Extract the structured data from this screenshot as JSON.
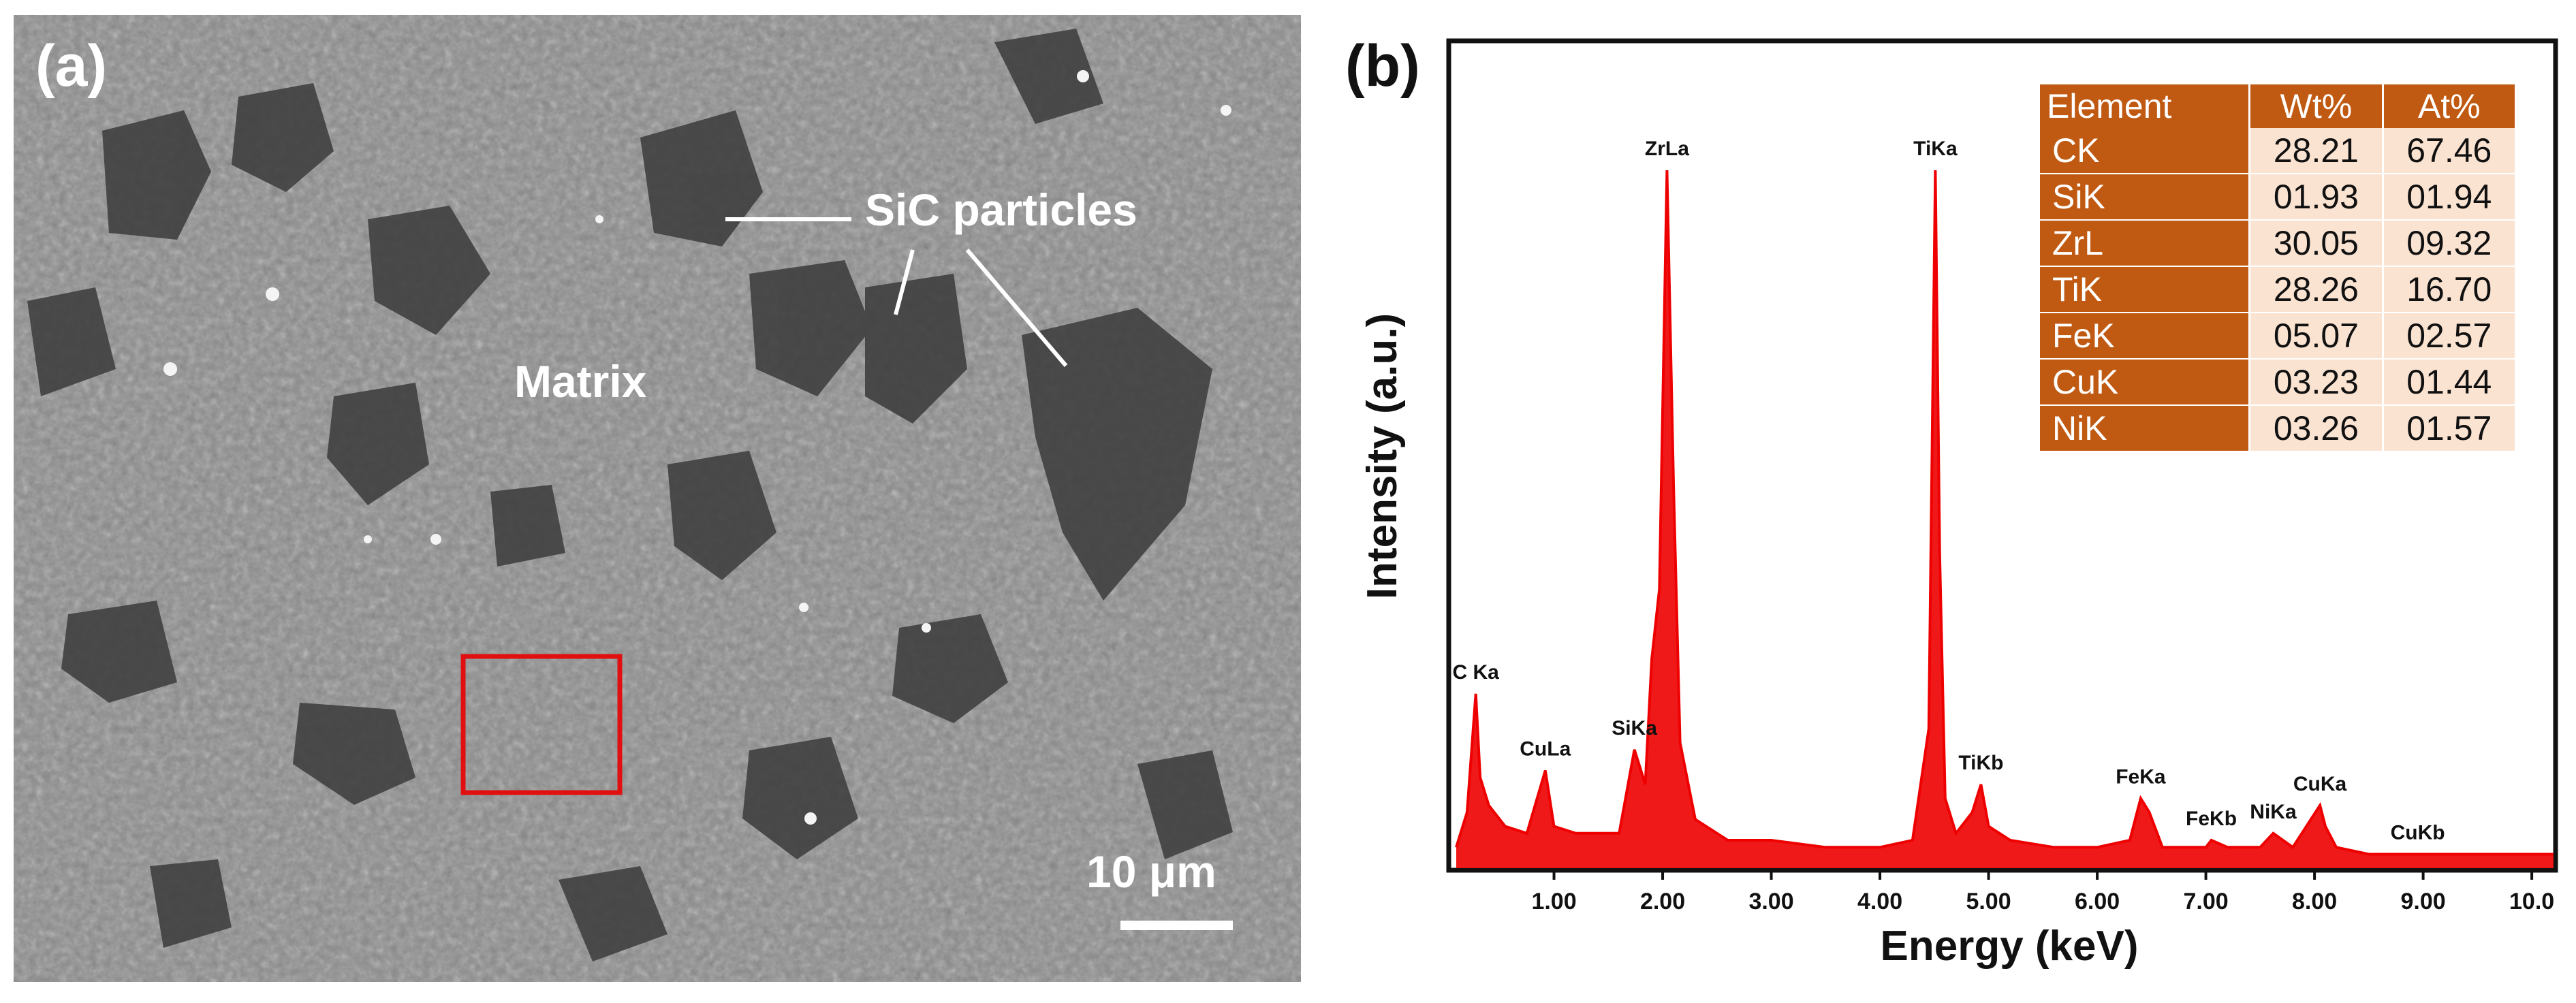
{
  "panel_a": {
    "label": "(a)",
    "annotations": [
      "SiC particles",
      "Matrix"
    ],
    "scale_bar": "10 μm"
  },
  "panel_b": {
    "label": "(b)",
    "table": {
      "headers": [
        "Element",
        "Wt%",
        "At%"
      ],
      "rows": [
        [
          "CK",
          "28.21",
          "67.46"
        ],
        [
          "SiK",
          "01.93",
          "01.94"
        ],
        [
          "ZrL",
          "30.05",
          "09.32"
        ],
        [
          "TiK",
          "28.26",
          "16.70"
        ],
        [
          "FeK",
          "05.07",
          "02.57"
        ],
        [
          "CuK",
          "03.23",
          "01.44"
        ],
        [
          "NiK",
          "03.26",
          "01.57"
        ]
      ]
    }
  },
  "colors": {
    "spectrum": "#ee0000",
    "table_header": "#c05a12",
    "table_cell": "#fbe3d2",
    "roi_box": "#e01010"
  },
  "chart_data": {
    "type": "line",
    "xlabel": "Energy (keV)",
    "ylabel": "Intensity (a.u.)",
    "xlim": [
      0.05,
      10.2
    ],
    "ylim": [
      0,
      100
    ],
    "x_ticks": [
      "1.00",
      "2.00",
      "3.00",
      "4.00",
      "5.00",
      "6.00",
      "7.00",
      "8.00",
      "9.00",
      "10.0"
    ],
    "grid": false,
    "series": [
      {
        "x": [
          0.1,
          0.2,
          0.28,
          0.32,
          0.4,
          0.55,
          0.75,
          0.92,
          1.0,
          1.2,
          1.4,
          1.6,
          1.74,
          1.84,
          1.9,
          1.97,
          2.04,
          2.1,
          2.16,
          2.3,
          2.6,
          3.0,
          3.5,
          4.0,
          4.3,
          4.45,
          4.51,
          4.55,
          4.6,
          4.7,
          4.85,
          4.93,
          5.0,
          5.2,
          5.6,
          6.0,
          6.3,
          6.4,
          6.48,
          6.6,
          7.0,
          7.05,
          7.2,
          7.5,
          7.62,
          7.8,
          8.05,
          8.1,
          8.2,
          8.5,
          9.0,
          9.5,
          10.0,
          10.2
        ],
        "y": [
          3,
          8,
          25,
          13,
          9,
          6,
          5,
          14,
          6,
          5,
          5,
          5,
          17,
          12,
          30,
          40,
          100,
          55,
          18,
          7,
          4,
          4,
          3,
          3,
          4,
          20,
          100,
          45,
          10,
          5,
          8,
          12,
          6,
          4,
          3,
          3,
          4,
          10,
          8,
          3,
          3,
          4,
          3,
          3,
          5,
          3,
          9,
          6,
          3,
          2,
          2,
          2,
          2,
          2
        ]
      }
    ],
    "peak_labels": [
      {
        "text": "C Ka",
        "x": 0.28,
        "y": 25
      },
      {
        "text": "CuLa",
        "x": 0.92,
        "y": 14
      },
      {
        "text": "SiKa",
        "x": 1.74,
        "y": 17
      },
      {
        "text": "ZrLa",
        "x": 2.04,
        "y": 100
      },
      {
        "text": "TiKa",
        "x": 4.51,
        "y": 100
      },
      {
        "text": "TiKb",
        "x": 4.93,
        "y": 12
      },
      {
        "text": "FeKa",
        "x": 6.4,
        "y": 10
      },
      {
        "text": "FeKb",
        "x": 7.05,
        "y": 4
      },
      {
        "text": "NiKa",
        "x": 7.62,
        "y": 5
      },
      {
        "text": "CuKa",
        "x": 8.05,
        "y": 9
      },
      {
        "text": "CuKb",
        "x": 8.95,
        "y": 2
      }
    ]
  }
}
